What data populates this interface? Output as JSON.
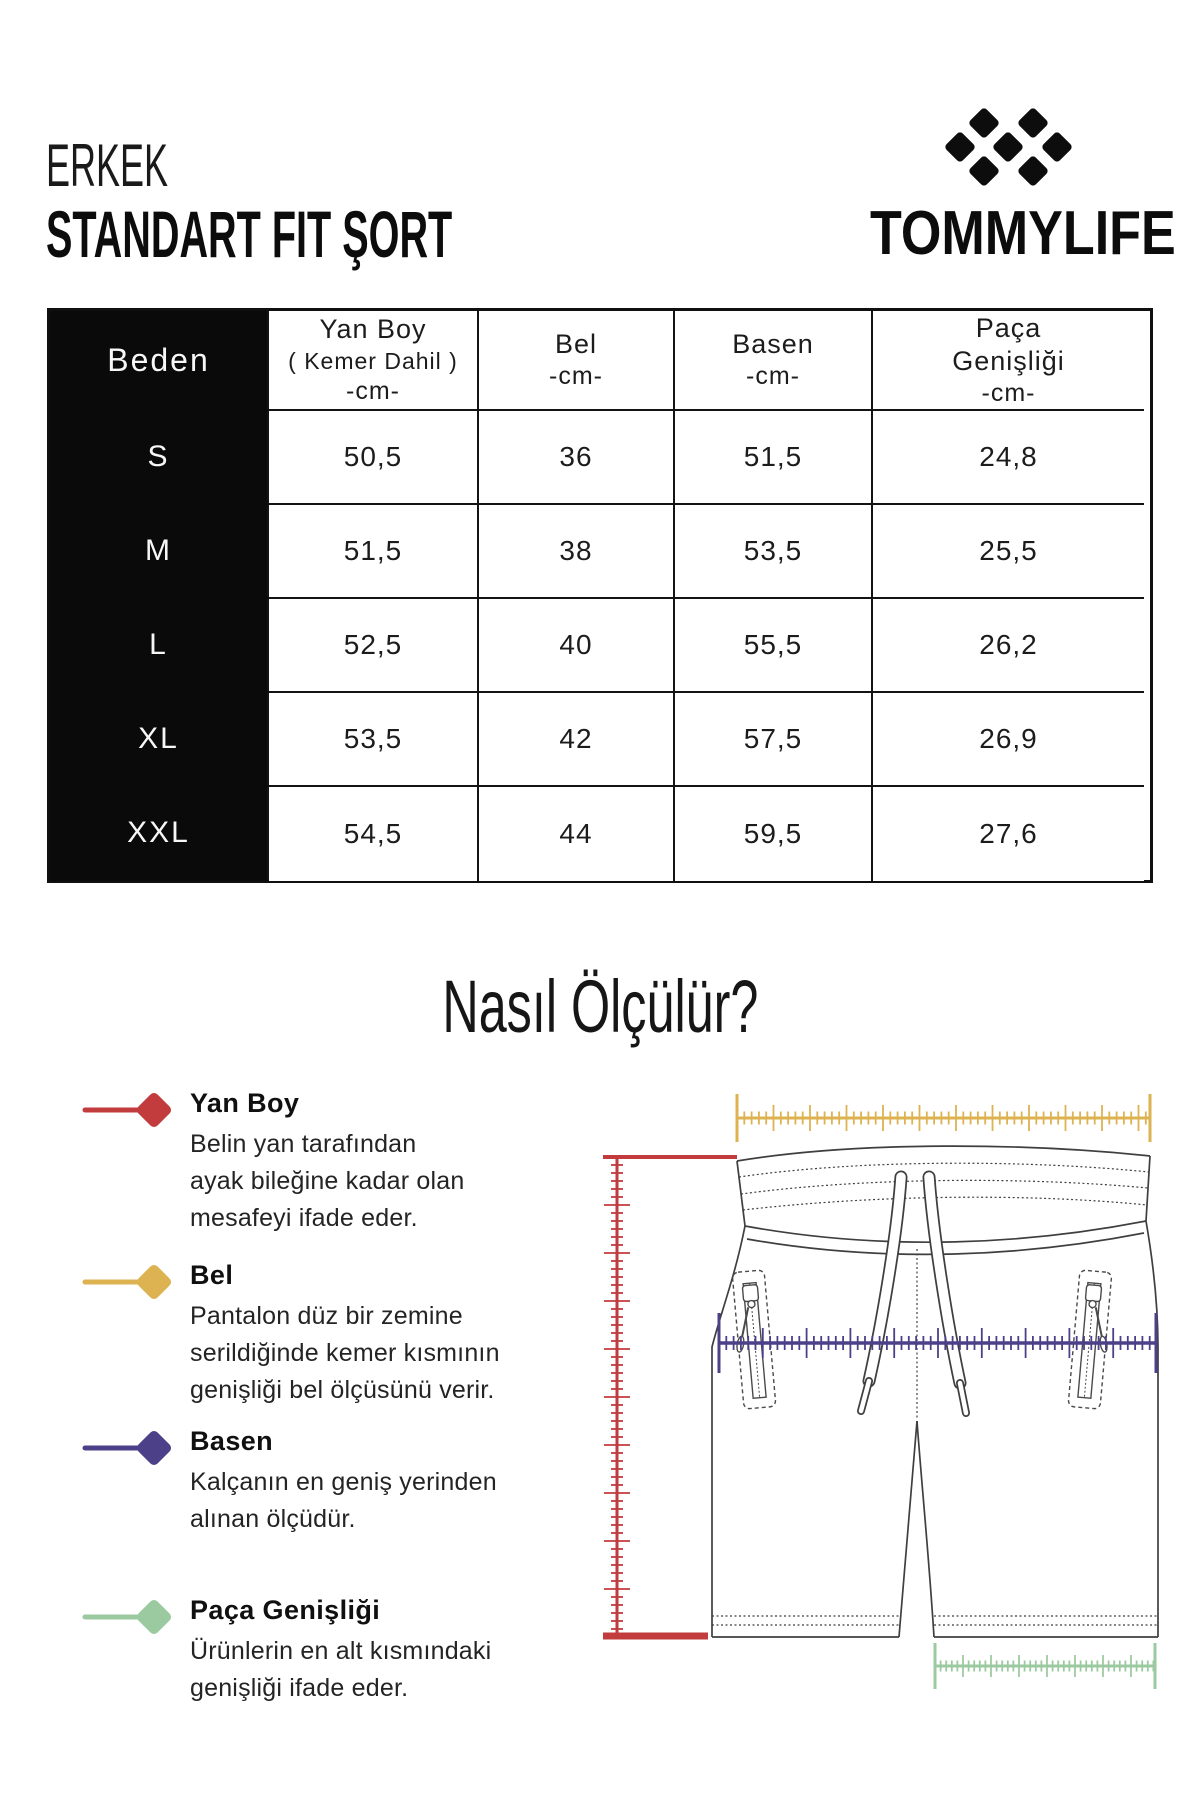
{
  "header": {
    "category": "ERKEK",
    "title": "STANDART FIT ŞORT",
    "brand": "TOMMYLIFE"
  },
  "size_table": {
    "columns": [
      {
        "lines": [
          "Beden"
        ]
      },
      {
        "lines": [
          "Yan Boy",
          "( Kemer Dahil )",
          "-cm-"
        ]
      },
      {
        "lines": [
          "Bel",
          "-cm-"
        ]
      },
      {
        "lines": [
          "Basen",
          "-cm-"
        ]
      },
      {
        "lines": [
          "Paça",
          "Genişliği",
          "-cm-"
        ]
      }
    ],
    "rows": [
      {
        "size": "S",
        "values": [
          "50,5",
          "36",
          "51,5",
          "24,8"
        ]
      },
      {
        "size": "M",
        "values": [
          "51,5",
          "38",
          "53,5",
          "25,5"
        ]
      },
      {
        "size": "L",
        "values": [
          "52,5",
          "40",
          "55,5",
          "26,2"
        ]
      },
      {
        "size": "XL",
        "values": [
          "53,5",
          "42",
          "57,5",
          "26,9"
        ]
      },
      {
        "size": "XXL",
        "values": [
          "54,5",
          "44",
          "59,5",
          "27,6"
        ]
      }
    ]
  },
  "how_to_measure": {
    "title": "Nasıl Ölçülür?",
    "items": [
      {
        "name": "Yan Boy",
        "color": "#c23b3d",
        "description_lines": [
          "Belin yan tarafından",
          "ayak bileğine kadar olan",
          "mesafeyi ifade eder."
        ]
      },
      {
        "name": "Bel",
        "color": "#ddb250",
        "description_lines": [
          "Pantalon düz bir zemine",
          "serildiğinde kemer kısmının",
          "genişliği bel ölçüsünü verir."
        ]
      },
      {
        "name": "Basen",
        "color": "#4c4188",
        "description_lines": [
          "Kalçanın en geniş yerinden",
          "alınan ölçüdür."
        ]
      },
      {
        "name": "Paça Genişliği",
        "color": "#9ccaa0",
        "description_lines": [
          "Ürünlerin en alt kısmındaki",
          "genişliği ifade eder."
        ]
      }
    ]
  }
}
